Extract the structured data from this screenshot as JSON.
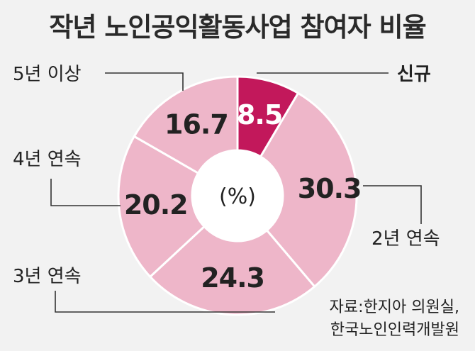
{
  "chart_data": {
    "type": "pie",
    "title": "작년 노인공익활동사업 참여자 비율",
    "unit_label": "(%)",
    "labels": [
      "신규",
      "2년 연속",
      "3년 연속",
      "4년 연속",
      "5년 이상"
    ],
    "values": [
      8.5,
      30.3,
      24.3,
      20.2,
      16.7
    ],
    "value_labels": [
      "8.5",
      "30.3",
      "24.3",
      "20.2",
      "16.7"
    ],
    "colors": [
      "#c2185b",
      "#eeb6c9",
      "#eeb6c9",
      "#eeb6c9",
      "#eeb6c9"
    ],
    "hole": true
  },
  "source": {
    "line1": "자료:한지아 의원실,",
    "line2": "한국노인인력개발원"
  }
}
